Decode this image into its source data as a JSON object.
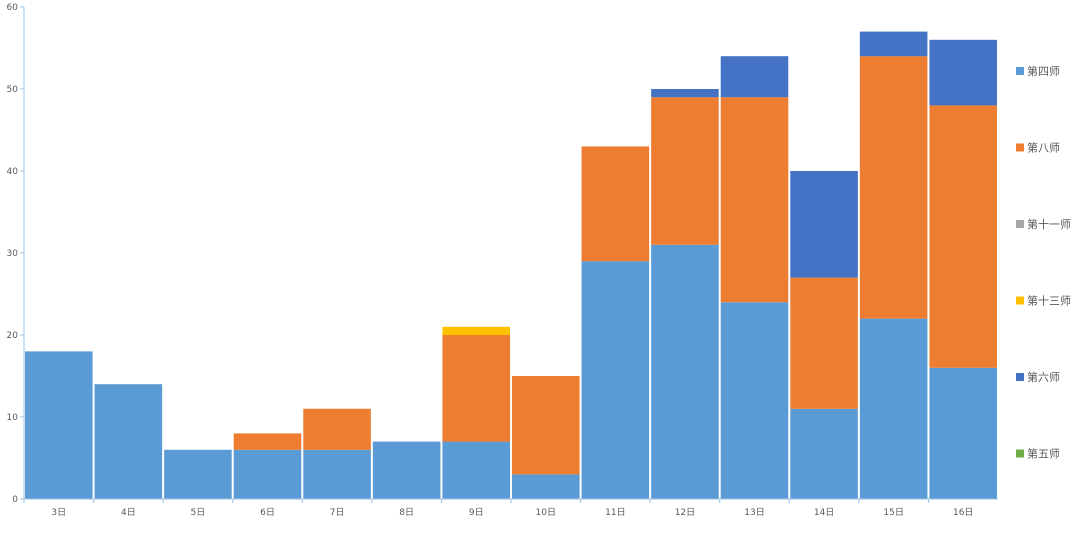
{
  "chart_data": {
    "type": "bar",
    "stacked": true,
    "categories": [
      "3日",
      "4日",
      "5日",
      "6日",
      "7日",
      "8日",
      "9日",
      "10日",
      "11日",
      "12日",
      "13日",
      "14日",
      "15日",
      "16日"
    ],
    "ylim": [
      0,
      60
    ],
    "yticks": [
      0,
      10,
      20,
      30,
      40,
      50,
      60
    ],
    "grid": false,
    "legend_position": "right",
    "series": [
      {
        "name": "第四师",
        "color": "#5B9BD5",
        "values": [
          18,
          14,
          6,
          6,
          6,
          7,
          7,
          3,
          29,
          31,
          24,
          11,
          22,
          16
        ]
      },
      {
        "name": "第八师",
        "color": "#ED7D31",
        "values": [
          0,
          0,
          0,
          2,
          5,
          0,
          13,
          12,
          14,
          18,
          25,
          16,
          32,
          32
        ]
      },
      {
        "name": "第十一师",
        "color": "#A5A5A5",
        "values": [
          0,
          0,
          0,
          0,
          0,
          0,
          0,
          0,
          0,
          0,
          0,
          0,
          0,
          0
        ]
      },
      {
        "name": "第十三师",
        "color": "#FFC000",
        "values": [
          0,
          0,
          0,
          0,
          0,
          0,
          1,
          0,
          0,
          0,
          0,
          0,
          0,
          0
        ]
      },
      {
        "name": "第六师",
        "color": "#4472C4",
        "values": [
          0,
          0,
          0,
          0,
          0,
          0,
          0,
          0,
          0,
          1,
          5,
          13,
          3,
          8
        ]
      },
      {
        "name": "第五师",
        "color": "#70AD47",
        "values": [
          0,
          0,
          0,
          0,
          0,
          0,
          0,
          0,
          0,
          0,
          0,
          0,
          0,
          0
        ]
      }
    ]
  }
}
